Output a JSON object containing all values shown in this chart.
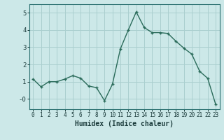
{
  "x": [
    0,
    1,
    2,
    3,
    4,
    5,
    6,
    7,
    8,
    9,
    10,
    11,
    12,
    13,
    14,
    15,
    16,
    17,
    18,
    19,
    20,
    21,
    22,
    23
  ],
  "y": [
    1.15,
    0.7,
    1.0,
    1.0,
    1.15,
    1.35,
    1.2,
    0.75,
    0.65,
    -0.1,
    0.85,
    2.9,
    4.0,
    5.05,
    4.15,
    3.85,
    3.85,
    3.8,
    3.35,
    2.95,
    2.6,
    1.6,
    1.2,
    -0.3
  ],
  "title": "",
  "xlabel": "Humidex (Indice chaleur)",
  "ylabel": "",
  "ylim": [
    -0.6,
    5.5
  ],
  "xlim": [
    -0.5,
    23.5
  ],
  "bg_color": "#cce8e8",
  "grid_color": "#aacfcf",
  "line_color": "#2a6b5a",
  "marker_color": "#2a6b5a",
  "yticks": [
    0,
    1,
    2,
    3,
    4,
    5
  ],
  "ytick_labels": [
    "-0",
    "1",
    "2",
    "3",
    "4",
    "5"
  ],
  "xticks": [
    0,
    1,
    2,
    3,
    4,
    5,
    6,
    7,
    8,
    9,
    10,
    11,
    12,
    13,
    14,
    15,
    16,
    17,
    18,
    19,
    20,
    21,
    22,
    23
  ]
}
